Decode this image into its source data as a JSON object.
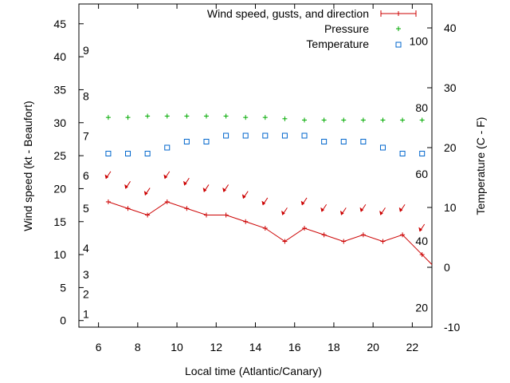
{
  "chart_data": {
    "type": "line",
    "title": "",
    "xlabel": "Local time (Atlantic/Canary)",
    "ylabel": "Wind speed (kt - Beaufort)",
    "y2label": "Temperature (C - F)",
    "xlim": [
      5,
      23
    ],
    "ylim": [
      -1,
      48
    ],
    "y2lim": [
      -10,
      44
    ],
    "x_ticks": [
      "6",
      "8",
      "10",
      "12",
      "14",
      "16",
      "18",
      "20",
      "22"
    ],
    "y_ticks": [
      "0",
      "5",
      "10",
      "15",
      "20",
      "25",
      "30",
      "35",
      "40",
      "45"
    ],
    "y2_ticks": [
      "-10",
      "0",
      "10",
      "20",
      "30",
      "40"
    ],
    "beaufort_labels": [
      {
        "label": "1",
        "kt": 1
      },
      {
        "label": "2",
        "kt": 4
      },
      {
        "label": "3",
        "kt": 7
      },
      {
        "label": "4",
        "kt": 11
      },
      {
        "label": "5",
        "kt": 17
      },
      {
        "label": "6",
        "kt": 22
      },
      {
        "label": "7",
        "kt": 28
      },
      {
        "label": "8",
        "kt": 34
      },
      {
        "label": "9",
        "kt": 41
      }
    ],
    "fahrenheit_labels": [
      {
        "label": "20",
        "celsius": -6.7
      },
      {
        "label": "40",
        "celsius": 4.4
      },
      {
        "label": "60",
        "celsius": 15.6
      },
      {
        "label": "80",
        "celsius": 26.7
      },
      {
        "label": "100",
        "celsius": 37.8
      }
    ],
    "legend_position": "top-right",
    "series": [
      {
        "name": "Wind speed, gusts, and direction",
        "color": "#cc0000",
        "axis": "left",
        "x": [
          6.5,
          7.5,
          8.5,
          9.5,
          10.5,
          11.5,
          12.5,
          13.5,
          14.5,
          15.5,
          16.5,
          17.5,
          18.5,
          19.5,
          20.5,
          21.5,
          22.5,
          23
        ],
        "y": [
          18,
          17,
          16,
          18,
          17,
          16,
          16,
          15,
          14,
          12,
          14,
          13,
          12,
          13,
          12,
          13,
          10,
          8.5
        ],
        "gusts": [
          22,
          20.5,
          19.5,
          22,
          21,
          20,
          20,
          19,
          18,
          16.5,
          18,
          17,
          16.5,
          17,
          16.5,
          17,
          14
        ]
      },
      {
        "name": "Pressure",
        "color": "#00aa00",
        "axis": "left",
        "x": [
          6.5,
          7.5,
          8.5,
          9.5,
          10.5,
          11.5,
          12.5,
          13.5,
          14.5,
          15.5,
          16.5,
          17.5,
          18.5,
          19.5,
          20.5,
          21.5,
          22.5
        ],
        "y": [
          30.8,
          30.8,
          31,
          31,
          31,
          31,
          31,
          30.8,
          30.8,
          30.6,
          30.4,
          30.4,
          30.4,
          30.4,
          30.4,
          30.4,
          30.4
        ]
      },
      {
        "name": "Temperature",
        "color": "#0066cc",
        "axis": "right",
        "x": [
          6.5,
          7.5,
          8.5,
          9.5,
          10.5,
          11.5,
          12.5,
          13.5,
          14.5,
          15.5,
          16.5,
          17.5,
          18.5,
          19.5,
          20.5,
          21.5,
          22.5
        ],
        "y": [
          19,
          19,
          19,
          20,
          21,
          21,
          22,
          22,
          22,
          22,
          22,
          21,
          21,
          21,
          20,
          19,
          19
        ]
      }
    ]
  }
}
